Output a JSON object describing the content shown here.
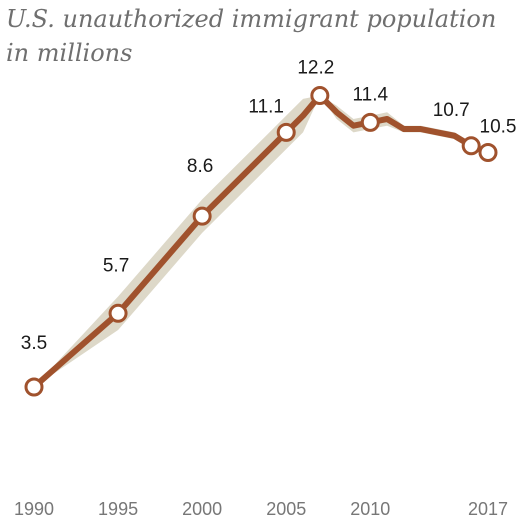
{
  "chart_data": {
    "type": "line",
    "title": "U.S. unauthorized immigrant population in millions",
    "xlabel": "",
    "ylabel": "",
    "x_ticks": [
      1990,
      1995,
      2000,
      2005,
      2010,
      2017
    ],
    "xlim": [
      1990,
      2017
    ],
    "ylim": [
      0,
      14
    ],
    "grid": false,
    "colors": {
      "line": "#a0522d",
      "band": "#ddd8c8",
      "marker_fill": "#ffffff"
    },
    "series": [
      {
        "name": "",
        "x": [
          1990,
          1995,
          2000,
          2005,
          2006,
          2007,
          2008,
          2009,
          2010,
          2011,
          2012,
          2013,
          2014,
          2015,
          2016,
          2017
        ],
        "y": [
          3.5,
          5.7,
          8.6,
          11.1,
          11.6,
          12.2,
          11.7,
          11.3,
          11.4,
          11.5,
          11.2,
          11.2,
          11.1,
          11.0,
          10.7,
          10.5
        ],
        "band_low": [
          3.5,
          5.2,
          8.1,
          10.6,
          11.1,
          12.2,
          11.5,
          11.1,
          11.2,
          11.3,
          11.1,
          11.1,
          11.0,
          10.9,
          10.6,
          10.5
        ],
        "band_high": [
          3.5,
          6.2,
          9.1,
          11.6,
          12.1,
          12.2,
          11.9,
          11.5,
          11.6,
          11.7,
          11.3,
          11.3,
          11.2,
          11.1,
          10.8,
          10.5
        ]
      }
    ],
    "markers": [
      {
        "x": 1990,
        "y": 3.5,
        "label": "3.5"
      },
      {
        "x": 1995,
        "y": 5.7,
        "label": "5.7"
      },
      {
        "x": 2000,
        "y": 8.6,
        "label": "8.6"
      },
      {
        "x": 2005,
        "y": 11.1,
        "label": "11.1"
      },
      {
        "x": 2007,
        "y": 12.2,
        "label": "12.2"
      },
      {
        "x": 2010,
        "y": 11.4,
        "label": "11.4"
      },
      {
        "x": 2016,
        "y": 10.7,
        "label": "10.7"
      },
      {
        "x": 2017,
        "y": 10.5,
        "label": "10.5"
      }
    ]
  }
}
